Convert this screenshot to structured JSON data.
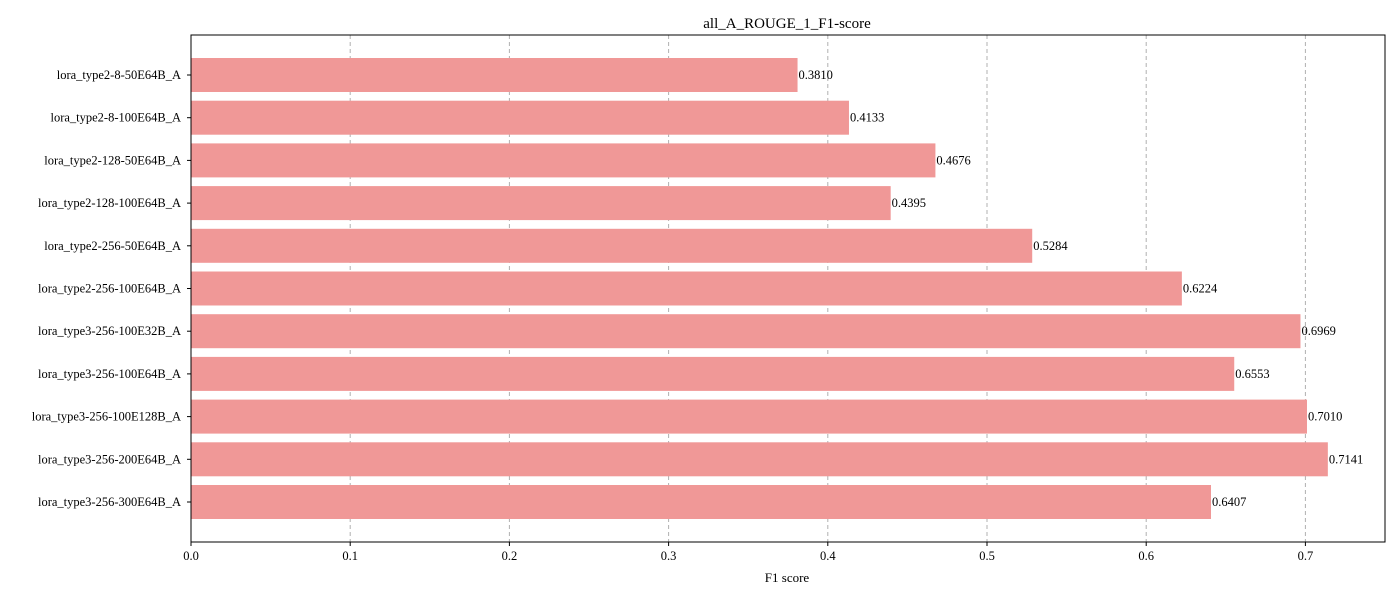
{
  "chart_data": {
    "type": "bar",
    "orientation": "horizontal",
    "title": "all_A_ROUGE_1_F1-score",
    "xlabel": "F1 score",
    "ylabel": "",
    "xlim": [
      0,
      0.75
    ],
    "xticks": [
      0.0,
      0.1,
      0.2,
      0.3,
      0.4,
      0.5,
      0.6,
      0.7
    ],
    "xtick_labels": [
      "0.0",
      "0.1",
      "0.2",
      "0.3",
      "0.4",
      "0.5",
      "0.6",
      "0.7"
    ],
    "grid": {
      "x": true,
      "y": false,
      "style": "dashed"
    },
    "bar_color": "#f09897",
    "categories": [
      "lora_type2-8-50E64B_A",
      "lora_type2-8-100E64B_A",
      "lora_type2-128-50E64B_A",
      "lora_type2-128-100E64B_A",
      "lora_type2-256-50E64B_A",
      "lora_type2-256-100E64B_A",
      "lora_type3-256-100E32B_A",
      "lora_type3-256-100E64B_A",
      "lora_type3-256-100E128B_A",
      "lora_type3-256-200E64B_A",
      "lora_type3-256-300E64B_A"
    ],
    "values": [
      0.381,
      0.4133,
      0.4676,
      0.4395,
      0.5284,
      0.6224,
      0.6969,
      0.6553,
      0.701,
      0.7141,
      0.6407
    ],
    "value_labels": [
      "0.3810",
      "0.4133",
      "0.4676",
      "0.4395",
      "0.5284",
      "0.6224",
      "0.6969",
      "0.6553",
      "0.7010",
      "0.7141",
      "0.6407"
    ]
  }
}
